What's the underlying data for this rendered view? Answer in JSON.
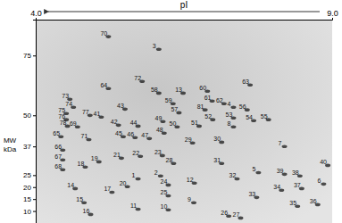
{
  "chart_data": {
    "type": "scatter",
    "x_label": "pI",
    "y_label": "MW kDa",
    "xlim": [
      4,
      9
    ],
    "xticks": [
      {
        "value": 4,
        "label": "4.0"
      },
      {
        "value": 9,
        "label": "9.0"
      }
    ],
    "ylim": [
      5,
      90
    ],
    "yticks": [
      10,
      15,
      20,
      25,
      37,
      50,
      75
    ],
    "grid": false,
    "series": [
      {
        "color": "#1a1a1a",
        "marker": "circle",
        "spot_labels": [
          "70",
          "3",
          "64",
          "72",
          "73",
          "74",
          "75",
          "76",
          "78",
          "69",
          "77",
          "41",
          "43",
          "58",
          "13",
          "59",
          "57",
          "60",
          "61",
          "62",
          "63",
          "4",
          "56",
          "81",
          "52",
          "53",
          "54",
          "55",
          "51",
          "8",
          "50",
          "49",
          "48",
          "47",
          "46",
          "45",
          "44",
          "42",
          "65",
          "71",
          "66",
          "67",
          "68",
          "18",
          "19",
          "21",
          "22",
          "23",
          "28",
          "29",
          "30",
          "31",
          "32",
          "12",
          "7",
          "5",
          "39",
          "38",
          "37",
          "40",
          "6",
          "14",
          "17",
          "20",
          "1",
          "2",
          "24",
          "25",
          "9",
          "10",
          "11",
          "15",
          "16",
          "26",
          "27",
          "33",
          "34",
          "35",
          "36"
        ],
        "x": [
          5.15,
          6.0,
          5.15,
          5.72,
          4.5,
          4.56,
          4.44,
          4.44,
          4.46,
          4.63,
          4.84,
          5.03,
          5.43,
          6.0,
          6.41,
          6.24,
          6.34,
          6.82,
          6.9,
          7.1,
          7.54,
          7.26,
          7.49,
          6.78,
          6.91,
          7.26,
          7.6,
          7.85,
          6.68,
          7.26,
          6.31,
          6.07,
          6.09,
          5.84,
          5.6,
          5.4,
          5.65,
          5.32,
          4.35,
          4.82,
          4.38,
          4.38,
          4.38,
          4.76,
          4.99,
          5.37,
          5.69,
          6.06,
          6.25,
          6.57,
          7.06,
          7.06,
          7.32,
          6.6,
          8.12,
          7.68,
          8.12,
          8.38,
          8.41,
          8.85,
          8.78,
          4.59,
          5.21,
          5.47,
          5.65,
          6.03,
          6.16,
          6.16,
          6.59,
          6.16,
          5.65,
          4.74,
          4.85,
          7.18,
          7.38,
          7.65,
          8.07,
          8.34,
          8.68
        ],
        "values": [
          84.0,
          78.7,
          62.3,
          65.3,
          57.8,
          54.5,
          51.9,
          49.3,
          46.6,
          46.3,
          51.1,
          50.4,
          53.7,
          60.4,
          60.4,
          56.0,
          52.2,
          61.2,
          57.1,
          56.0,
          63.8,
          54.5,
          53.4,
          53.4,
          49.3,
          50.0,
          48.9,
          49.3,
          46.6,
          46.3,
          46.3,
          48.5,
          43.7,
          41.4,
          41.8,
          42.2,
          46.6,
          47.0,
          42.2,
          41.0,
          36.6,
          32.5,
          28.4,
          29.5,
          31.7,
          33.2,
          34.0,
          34.3,
          31.0,
          39.6,
          39.9,
          31.0,
          24.6,
          22.8,
          38.1,
          27.2,
          26.5,
          25.8,
          20.5,
          30.2,
          22.4,
          20.5,
          19.0,
          21.3,
          24.6,
          25.8,
          22.0,
          17.5,
          14.6,
          11.6,
          11.9,
          14.6,
          9.7,
          9.0,
          8.2,
          16.8,
          19.8,
          13.1,
          13.8
        ]
      }
    ]
  }
}
